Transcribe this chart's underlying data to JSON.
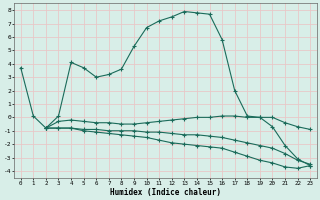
{
  "title": "",
  "xlabel": "Humidex (Indice chaleur)",
  "xlim": [
    -0.5,
    23.5
  ],
  "ylim": [
    -4.5,
    8.5
  ],
  "yticks": [
    -4,
    -3,
    -2,
    -1,
    0,
    1,
    2,
    3,
    4,
    5,
    6,
    7,
    8
  ],
  "xticks": [
    0,
    1,
    2,
    3,
    4,
    5,
    6,
    7,
    8,
    9,
    10,
    11,
    12,
    13,
    14,
    15,
    16,
    17,
    18,
    19,
    20,
    21,
    22,
    23
  ],
  "bg_color": "#d8eee8",
  "grid_color": "#e8c8c8",
  "line_color": "#1a6b5a",
  "lines": [
    {
      "x": [
        0,
        1,
        2,
        3,
        4,
        5,
        6,
        7,
        8,
        9,
        10,
        11,
        12,
        13,
        14,
        15,
        16,
        17,
        18,
        19,
        20,
        21,
        22,
        23
      ],
      "y": [
        3.7,
        0.1,
        -0.8,
        0.1,
        4.1,
        3.7,
        3.0,
        3.2,
        3.6,
        5.3,
        6.7,
        7.2,
        7.5,
        7.9,
        7.8,
        7.7,
        5.8,
        2.0,
        0.1,
        0.0,
        -0.7,
        -2.1,
        -3.1,
        -3.6
      ]
    },
    {
      "x": [
        2,
        3,
        4,
        5,
        6,
        7,
        8,
        9,
        10,
        11,
        12,
        13,
        14,
        15,
        16,
        17,
        18,
        19,
        20,
        21,
        22,
        23
      ],
      "y": [
        -0.8,
        -0.3,
        -0.2,
        -0.3,
        -0.4,
        -0.4,
        -0.5,
        -0.5,
        -0.4,
        -0.3,
        -0.2,
        -0.1,
        0.0,
        0.0,
        0.1,
        0.1,
        0.0,
        0.0,
        0.0,
        -0.4,
        -0.7,
        -0.9
      ]
    },
    {
      "x": [
        2,
        3,
        4,
        5,
        6,
        7,
        8,
        9,
        10,
        11,
        12,
        13,
        14,
        15,
        16,
        17,
        18,
        19,
        20,
        21,
        22,
        23
      ],
      "y": [
        -0.8,
        -0.8,
        -0.8,
        -0.9,
        -0.9,
        -1.0,
        -1.0,
        -1.0,
        -1.1,
        -1.1,
        -1.2,
        -1.3,
        -1.3,
        -1.4,
        -1.5,
        -1.7,
        -1.9,
        -2.1,
        -2.3,
        -2.7,
        -3.2,
        -3.5
      ]
    },
    {
      "x": [
        2,
        3,
        4,
        5,
        6,
        7,
        8,
        9,
        10,
        11,
        12,
        13,
        14,
        15,
        16,
        17,
        18,
        19,
        20,
        21,
        22,
        23
      ],
      "y": [
        -0.8,
        -0.8,
        -0.8,
        -1.0,
        -1.1,
        -1.2,
        -1.3,
        -1.4,
        -1.5,
        -1.7,
        -1.9,
        -2.0,
        -2.1,
        -2.2,
        -2.3,
        -2.6,
        -2.9,
        -3.2,
        -3.4,
        -3.7,
        -3.8,
        -3.6
      ]
    }
  ]
}
